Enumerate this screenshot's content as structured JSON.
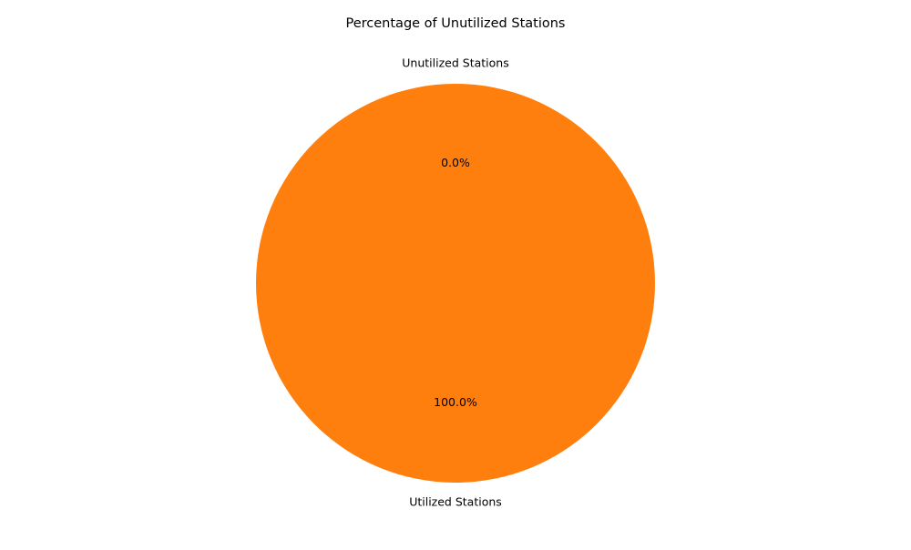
{
  "chart_data": {
    "type": "pie",
    "title": "Percentage of Unutilized Stations",
    "start_angle_deg": 90,
    "slices": [
      {
        "label": "Unutilized Stations",
        "value": 0.0,
        "percent_label": "0.0%",
        "color": "#1f77b4"
      },
      {
        "label": "Utilized Stations",
        "value": 100.0,
        "percent_label": "100.0%",
        "color": "#ff7f0e"
      }
    ]
  }
}
